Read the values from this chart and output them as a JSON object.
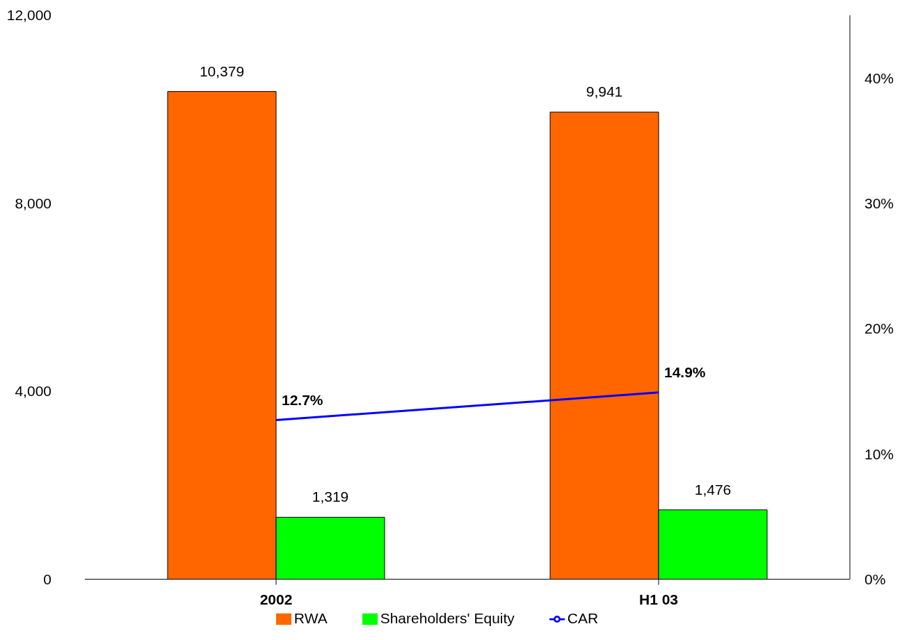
{
  "chart_data": {
    "type": "bar",
    "categories": [
      "2002",
      "H1 03"
    ],
    "series": [
      {
        "name": "RWA",
        "color": "#ff6600",
        "values": [
          10379,
          9941
        ],
        "value_labels": [
          "10,379",
          "9,941"
        ]
      },
      {
        "name": "Shareholders' Equity",
        "color": "#00ff00",
        "values": [
          1319,
          1476
        ],
        "value_labels": [
          "1,319",
          "1,476"
        ]
      },
      {
        "name": "CAR",
        "type": "line",
        "axis": "y2",
        "color": "#0000ff",
        "values": [
          12.7,
          14.9
        ],
        "value_labels": [
          "12.7%",
          "14.9%"
        ]
      }
    ],
    "ylim": [
      0,
      12000
    ],
    "yticks": [
      0,
      {
        "value": 4000,
        "label": "4,000"
      },
      {
        "value": 8000,
        "label": "8,000"
      },
      {
        "value": 12000,
        "label": "12,000"
      }
    ],
    "y2lim": [
      0,
      45
    ],
    "y2ticks": [
      {
        "value": 0,
        "label": "0%"
      },
      {
        "value": 10,
        "label": "10%"
      },
      {
        "value": 20,
        "label": "20%"
      },
      {
        "value": 30,
        "label": "30%"
      },
      {
        "value": 40,
        "label": "40%"
      }
    ],
    "grid": false,
    "legend": "bottom",
    "marker": "none"
  }
}
